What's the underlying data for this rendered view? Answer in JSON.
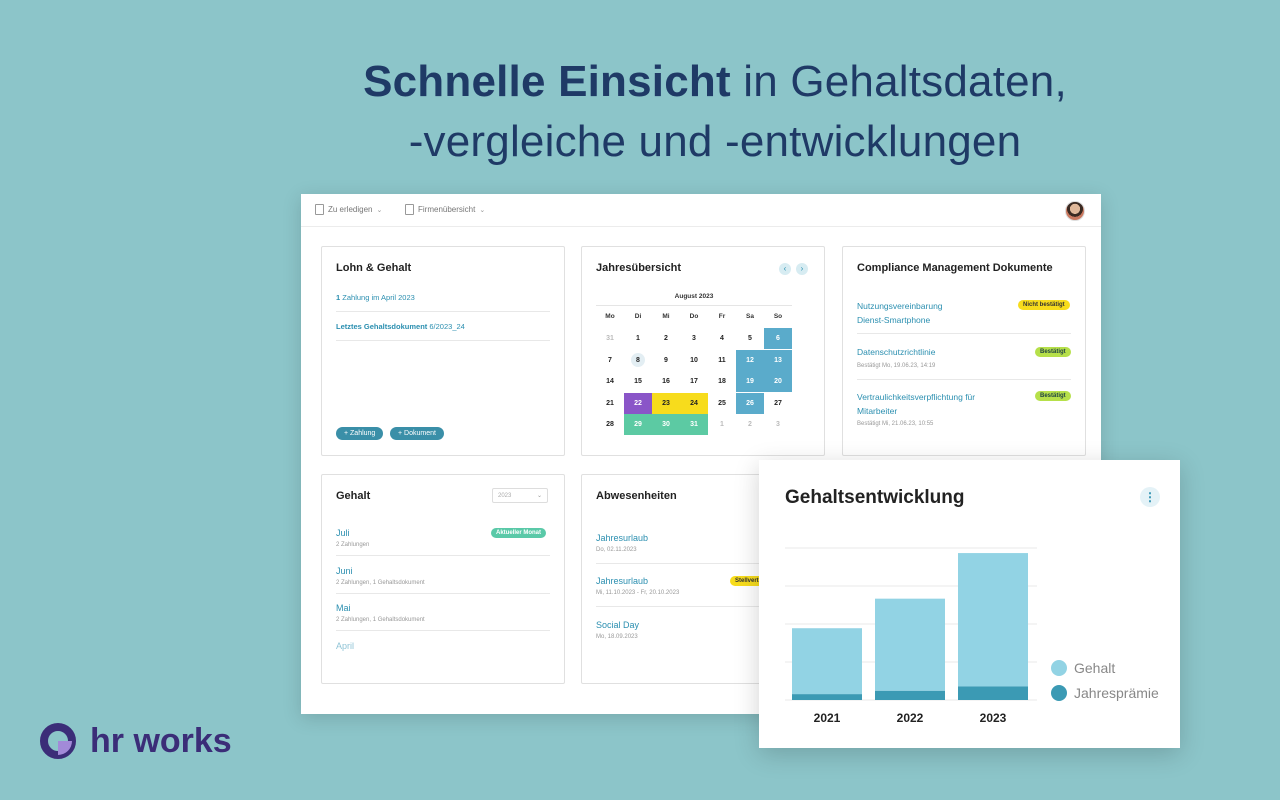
{
  "headline": {
    "bold": "Schnelle Einsicht",
    "rest1": " in Gehaltsdaten,",
    "line2": "-vergleiche und -entwicklungen"
  },
  "topbar": {
    "todo": "Zu erledigen",
    "company": "Firmenübersicht"
  },
  "lohn": {
    "title": "Lohn & Gehalt",
    "payment_count": "1",
    "payment_text": "Zahlung im April 2023",
    "doc_label": "Letztes Gehaltsdokument",
    "doc_value": "6/2023_24",
    "btn_payment": "+ Zahlung",
    "btn_document": "+ Dokument"
  },
  "calendar": {
    "title": "Jahresübersicht",
    "month": "August 2023",
    "weekdays": [
      "Mo",
      "Di",
      "Mi",
      "Do",
      "Fr",
      "Sa",
      "So"
    ],
    "rows": [
      [
        "31",
        "1",
        "2",
        "3",
        "4",
        "5",
        "6"
      ],
      [
        "7",
        "8",
        "9",
        "10",
        "11",
        "12",
        "13"
      ],
      [
        "14",
        "15",
        "16",
        "17",
        "18",
        "19",
        "20"
      ],
      [
        "21",
        "22",
        "23",
        "24",
        "25",
        "26",
        "27"
      ],
      [
        "28",
        "29",
        "30",
        "31",
        "1",
        "2",
        "3"
      ]
    ],
    "colors": {
      "blue": "#5aabcb",
      "purple": "#8a55c8",
      "yellow": "#f7dc1c",
      "green": "#5ccaa3"
    }
  },
  "compliance": {
    "title": "Compliance Management Dokumente",
    "items": [
      {
        "title1": "Nutzungsvereinbarung",
        "title2": "Dienst-Smartphone",
        "badge": "Nicht bestätigt",
        "sub": ""
      },
      {
        "title1": "Datenschutzrichtlinie",
        "title2": "",
        "badge": "Bestätigt",
        "sub": "Bestätigt Mo, 19.06.23, 14:19"
      },
      {
        "title1": "Vertraulichkeitsverpflichtung für",
        "title2": "Mitarbeiter",
        "badge": "Bestätigt",
        "sub": "Bestätigt Mi, 21.06.23, 10:55"
      }
    ]
  },
  "gehalt": {
    "title": "Gehalt",
    "year": "2023",
    "items": [
      {
        "month": "Juli",
        "sub": "2 Zahlungen",
        "badge": "Aktueller Monat"
      },
      {
        "month": "Juni",
        "sub": "2 Zahlungen, 1 Gehaltsdokument"
      },
      {
        "month": "Mai",
        "sub": "2 Zahlungen, 1 Gehaltsdokument"
      },
      {
        "month": "April",
        "sub": ""
      }
    ]
  },
  "absences": {
    "title": "Abwesenheiten",
    "items": [
      {
        "title": "Jahresurlaub",
        "sub": "Do, 02.11.2023",
        "badge": ""
      },
      {
        "title": "Jahresurlaub",
        "sub": "Mi, 11.10.2023 - Fr, 20.10.2023",
        "badge": "Stellvert"
      },
      {
        "title": "Social Day",
        "sub": "Mo, 18.09.2023",
        "badge": ""
      }
    ]
  },
  "chart_data": {
    "type": "bar",
    "title": "Gehaltsentwicklung",
    "categories": [
      "2021",
      "2022",
      "2023"
    ],
    "series": [
      {
        "name": "Gehalt",
        "values": [
          78,
          109,
          158
        ],
        "color": "#92d3e4"
      },
      {
        "name": "Jahresprämie",
        "values": [
          7,
          11,
          16
        ],
        "color": "#3b9ab4"
      }
    ],
    "stacked": true,
    "ylim": [
      0,
      180
    ],
    "grid": true,
    "legend": "right"
  },
  "logo": {
    "text": "hr works"
  }
}
